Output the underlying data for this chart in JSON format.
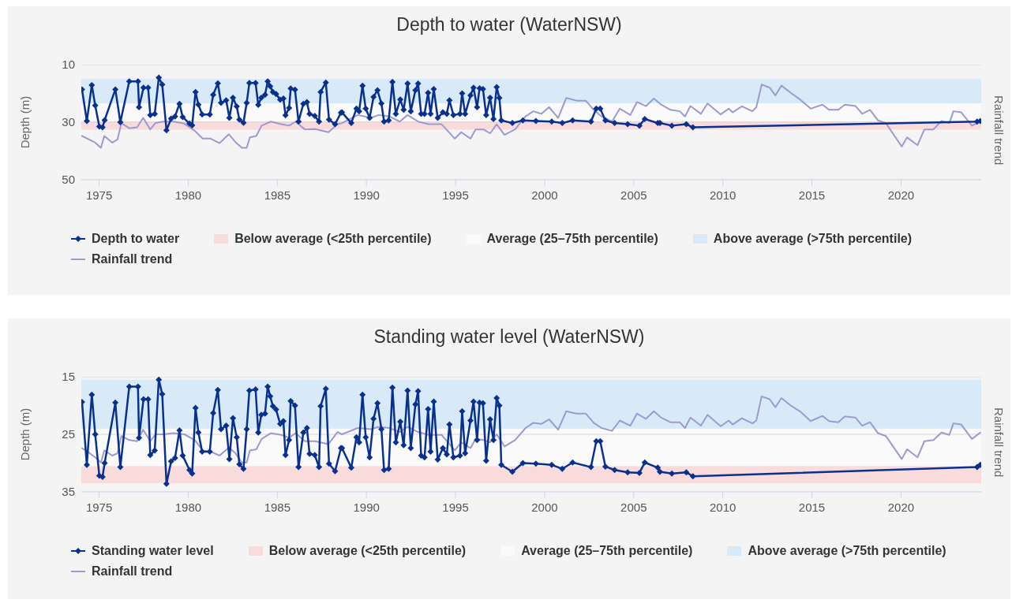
{
  "chart_data": [
    {
      "type": "line",
      "title": "Depth to water (WaterNSW)",
      "ylabel": "Depth (m)",
      "y2label": "Rainfall trend",
      "xlim": [
        1974,
        2024.5
      ],
      "xticks": [
        1975,
        1980,
        1985,
        1990,
        1995,
        2000,
        2005,
        2010,
        2015,
        2020
      ],
      "ylim": [
        50,
        10
      ],
      "yticks": [
        10,
        30,
        50
      ],
      "grid": "y",
      "legend": "bottom",
      "bands": [
        {
          "axis": "y",
          "from": 29.7,
          "to": 32.6,
          "label": "Below average (<25th percentile)",
          "color": "#fadbdc"
        },
        {
          "axis": "y",
          "from": 23.4,
          "to": 29.7,
          "label": "Average (25–75th percentile)",
          "color": "#fafafa"
        },
        {
          "axis": "y",
          "from": 15,
          "to": 23.4,
          "label": "Above average (>75th percentile)",
          "color": "#d8eaf8"
        }
      ],
      "series": [
        {
          "name": "Depth to water",
          "color": "#08318f",
          "marker": "diamond",
          "x": [
            1974.04,
            1974.31,
            1974.59,
            1974.78,
            1975.01,
            1975.19,
            1975.31,
            1975.91,
            1976.19,
            1976.69,
            1977.18,
            1977.24,
            1977.49,
            1977.75,
            1977.87,
            1978.12,
            1978.35,
            1978.54,
            1978.78,
            1979.04,
            1979.26,
            1979.51,
            1979.69,
            1980.07,
            1980.22,
            1980.41,
            1980.57,
            1980.78,
            1981.21,
            1981.4,
            1981.66,
            1981.84,
            1982.13,
            1982.31,
            1982.51,
            1982.72,
            1982.87,
            1983.1,
            1983.28,
            1983.43,
            1983.78,
            1983.93,
            1984.1,
            1984.31,
            1984.46,
            1984.6,
            1984.75,
            1984.93,
            1985.16,
            1985.34,
            1985.46,
            1985.66,
            1985.75,
            1985.99,
            1986.19,
            1986.46,
            1986.66,
            1986.81,
            1987.1,
            1987.34,
            1987.43,
            1987.72,
            1987.9,
            1988.24,
            1988.57,
            1988.63,
            1989.15,
            1989.44,
            1989.59,
            1989.78,
            1989.96,
            1990.18,
            1990.4,
            1990.62,
            1990.84,
            1990.99,
            1991.25,
            1991.46,
            1991.65,
            1991.9,
            1992.09,
            1992.31,
            1992.49,
            1992.75,
            1992.9,
            1993.07,
            1993.26,
            1993.46,
            1993.6,
            1993.78,
            1994,
            1994.29,
            1994.51,
            1994.66,
            1994.88,
            1995.25,
            1995.37,
            1995.54,
            1995.84,
            1996.01,
            1996.21,
            1996.35,
            1996.54,
            1996.72,
            1996.94,
            1997.13,
            1997.31,
            1997.46,
            1997.57,
            1998.19,
            1998.78,
            1999.51,
            2000.4,
            2000.99,
            2001.57,
            2002.6,
            2002.9,
            2003.12,
            2003.41,
            2003.93,
            2004.66,
            2005.32,
            2005.62,
            2006.35,
            2006.47,
            2007.14,
            2007.95,
            2008.32,
            2024.27,
            2024.45
          ],
          "values": [
            18.6,
            29.6,
            17.1,
            24.2,
            31.5,
            31.8,
            29.3,
            18.6,
            30,
            15.8,
            15.8,
            24.8,
            18,
            18,
            27.5,
            27.1,
            14.5,
            16.9,
            32.8,
            28.8,
            28,
            23.6,
            28.2,
            30.5,
            31.1,
            19.5,
            23.9,
            27.3,
            27.3,
            20.5,
            16.5,
            23.3,
            22.4,
            28.5,
            21.5,
            24.5,
            29.1,
            30.2,
            23.3,
            16.4,
            16.4,
            24,
            21.5,
            20.5,
            15.8,
            17.5,
            19.5,
            20.2,
            22.2,
            21.8,
            27.6,
            25.1,
            18.3,
            18.7,
            29.8,
            23.6,
            23,
            27.1,
            27.8,
            29.8,
            19.5,
            16.2,
            29.1,
            30.7,
            26.7,
            26.6,
            30.3,
            25.3,
            26.2,
            17.3,
            25.3,
            28.5,
            21.2,
            18.9,
            23.5,
            29.8,
            29.4,
            16,
            27.1,
            22.1,
            25.7,
            16.6,
            26.2,
            18.9,
            16.6,
            27.1,
            27.1,
            19.8,
            27.1,
            18.5,
            28.5,
            26.6,
            27.1,
            22.4,
            27.5,
            27.1,
            20,
            27.1,
            20.7,
            18,
            24.8,
            18.2,
            18.5,
            27.5,
            21.5,
            28.9,
            17.8,
            21.6,
            29.4,
            30.3,
            29.4,
            29.6,
            29.8,
            30.3,
            29.4,
            29.8,
            25.3,
            25.3,
            29.4,
            30.3,
            30.7,
            31.2,
            28.9,
            30.3,
            30.3,
            31.2,
            30.7,
            31.8,
            29.8,
            29.6
          ]
        },
        {
          "name": "Rainfall trend",
          "color": "#9d9ad0",
          "marker": "none",
          "x": [
            1974.04,
            1974.34,
            1974.78,
            1975.1,
            1975.29,
            1975.74,
            1976.03,
            1976.25,
            1976.69,
            1977.13,
            1977.47,
            1977.87,
            1978.16,
            1978.6,
            1979.19,
            1979.78,
            1980.37,
            1980.81,
            1981.25,
            1981.76,
            1982.28,
            1982.65,
            1983.01,
            1983.28,
            1983.46,
            1983.82,
            1984.12,
            1984.63,
            1985.22,
            1985.66,
            1986.03,
            1986.54,
            1987.13,
            1987.87,
            1988.38,
            1988.63,
            1989.51,
            1990.25,
            1990.69,
            1991.28,
            1991.87,
            1992.31,
            1992.9,
            1993.49,
            1994.22,
            1994.96,
            1995.32,
            1995.84,
            1996.13,
            1996.57,
            1996.94,
            1997.31,
            1997.75,
            1998.34,
            1998.93,
            1999.37,
            1999.81,
            2000.25,
            2000.76,
            2001.21,
            2001.79,
            2002.31,
            2002.75,
            2003.19,
            2003.78,
            2004.22,
            2004.81,
            2005.18,
            2005.69,
            2006.13,
            2006.54,
            2007.06,
            2007.58,
            2007.88,
            2008.18,
            2008.77,
            2009.14,
            2009.88,
            2010.33,
            2010.55,
            2011.07,
            2011.66,
            2011.88,
            2012.18,
            2012.63,
            2012.95,
            2013.29,
            2013.81,
            2014.33,
            2014.93,
            2015.59,
            2015.96,
            2016.48,
            2016.85,
            2017.45,
            2017.82,
            2018.26,
            2018.71,
            2019.15,
            2020.04,
            2020.34,
            2020.93,
            2021.31,
            2021.82,
            2022.27,
            2022.71,
            2022.94,
            2023.38,
            2023.98,
            2024.45
          ],
          "values": [
            34.8,
            35.7,
            37.1,
            38.9,
            34.8,
            37.1,
            36,
            30.3,
            32.1,
            31.8,
            28.5,
            32.5,
            30.3,
            29.8,
            29.8,
            30.5,
            33,
            35.7,
            35.7,
            37.3,
            34.2,
            36.9,
            38.9,
            38.9,
            35.3,
            34.8,
            31.2,
            29.8,
            30.7,
            31.2,
            29.8,
            32.5,
            32.4,
            33.5,
            30.7,
            30.3,
            27.5,
            28.5,
            27.5,
            28,
            29.8,
            27.5,
            29.8,
            30.7,
            30.7,
            35.7,
            33.5,
            35.7,
            32.5,
            32.5,
            33.9,
            30.7,
            34.4,
            32.5,
            28,
            26.2,
            27.1,
            24.8,
            28.5,
            21.6,
            22.5,
            22.5,
            25.7,
            28,
            29.8,
            25.3,
            27.5,
            23,
            24.4,
            21.8,
            23.9,
            25.7,
            26.2,
            28,
            24.4,
            27.1,
            23.5,
            27.3,
            25.3,
            26.6,
            24.5,
            26.2,
            24.8,
            16.9,
            18,
            20.7,
            17.3,
            19.8,
            22.1,
            25.3,
            23.9,
            25.7,
            25.7,
            23.9,
            24.4,
            27.1,
            25.7,
            29.4,
            30.3,
            38.5,
            35.3,
            38,
            32.5,
            32.5,
            29.6,
            30.3,
            26.2,
            26.6,
            31.2,
            29.8
          ]
        }
      ]
    },
    {
      "type": "line",
      "title": "Standing water level (WaterNSW)",
      "ylabel": "Depth (m)",
      "y2label": "Rainfall trend",
      "xlim": [
        1974,
        2024.5
      ],
      "xticks": [
        1975,
        1980,
        1985,
        1990,
        1995,
        2000,
        2005,
        2010,
        2015,
        2020
      ],
      "ylim": [
        35,
        15
      ],
      "yticks": [
        15,
        25,
        35
      ],
      "grid": "y",
      "legend": "bottom",
      "bands": [
        {
          "axis": "y",
          "from": 30.5,
          "to": 33.5,
          "label": "Below average (<25th percentile)",
          "color": "#fadbdc"
        },
        {
          "axis": "y",
          "from": 24,
          "to": 30.5,
          "label": "Average (25–75th percentile)",
          "color": "#fafafa"
        },
        {
          "axis": "y",
          "from": 15.5,
          "to": 24,
          "label": "Above average (>75th percentile)",
          "color": "#d8eaf8"
        }
      ],
      "series": [
        {
          "name": "Standing water level",
          "color": "#08318f",
          "marker": "diamond",
          "x": [
            1974.04,
            1974.31,
            1974.59,
            1974.78,
            1975.01,
            1975.19,
            1975.31,
            1975.91,
            1976.19,
            1976.69,
            1977.18,
            1977.24,
            1977.49,
            1977.75,
            1977.87,
            1978.12,
            1978.35,
            1978.54,
            1978.78,
            1979.04,
            1979.26,
            1979.51,
            1979.69,
            1980.07,
            1980.22,
            1980.41,
            1980.57,
            1980.78,
            1981.21,
            1981.4,
            1981.66,
            1981.84,
            1982.13,
            1982.31,
            1982.51,
            1982.72,
            1982.87,
            1983.1,
            1983.28,
            1983.43,
            1983.78,
            1983.93,
            1984.1,
            1984.31,
            1984.46,
            1984.6,
            1984.75,
            1984.93,
            1985.16,
            1985.34,
            1985.46,
            1985.66,
            1985.75,
            1985.99,
            1986.19,
            1986.46,
            1986.66,
            1986.81,
            1987.1,
            1987.34,
            1987.43,
            1987.72,
            1987.9,
            1988.24,
            1988.57,
            1988.63,
            1989.15,
            1989.44,
            1989.59,
            1989.78,
            1989.96,
            1990.18,
            1990.4,
            1990.62,
            1990.84,
            1990.99,
            1991.25,
            1991.46,
            1991.65,
            1991.9,
            1992.09,
            1992.31,
            1992.49,
            1992.75,
            1992.9,
            1993.07,
            1993.26,
            1993.46,
            1993.6,
            1993.78,
            1994,
            1994.29,
            1994.51,
            1994.66,
            1994.88,
            1995.25,
            1995.37,
            1995.54,
            1995.84,
            1996.01,
            1996.21,
            1996.35,
            1996.54,
            1996.72,
            1996.94,
            1997.13,
            1997.31,
            1997.46,
            1997.57,
            1998.19,
            1998.78,
            1999.51,
            2000.4,
            2000.99,
            2001.57,
            2002.6,
            2002.9,
            2003.12,
            2003.41,
            2003.93,
            2004.66,
            2005.32,
            2005.62,
            2006.35,
            2006.47,
            2007.14,
            2007.95,
            2008.32,
            2024.27,
            2024.45
          ],
          "values": [
            19.4,
            30.3,
            18.1,
            25,
            32.2,
            32.4,
            30,
            19.5,
            30.7,
            16.7,
            16.7,
            25.6,
            18.9,
            18.9,
            28.6,
            27.8,
            15.5,
            18,
            33.6,
            29.7,
            29.1,
            24.3,
            28.7,
            31.2,
            31.8,
            20.4,
            24.7,
            28,
            28,
            21.3,
            17.3,
            24.1,
            23.5,
            29.3,
            22.2,
            25.5,
            30.2,
            31,
            24.1,
            17.4,
            17.2,
            24.7,
            21.6,
            21.4,
            16.7,
            18.4,
            20.1,
            20.7,
            23.2,
            22.7,
            28.6,
            26,
            19.2,
            20,
            30.7,
            24.7,
            23.9,
            28.4,
            28.6,
            30.7,
            20.1,
            17.1,
            30.1,
            31.4,
            27.4,
            27.4,
            30.8,
            25.5,
            26.4,
            18.1,
            25.5,
            29,
            22.3,
            19.6,
            24.1,
            31.2,
            31,
            16.9,
            26.4,
            22.8,
            26.9,
            17.4,
            27.4,
            19.8,
            17.5,
            28.7,
            29,
            20.6,
            28,
            19.3,
            29.4,
            27.4,
            28.5,
            23.3,
            29,
            28.7,
            21,
            28.3,
            22.6,
            19.3,
            26,
            19.5,
            19.6,
            29.6,
            22.4,
            26,
            18.7,
            20,
            30.3,
            31.5,
            30,
            30.1,
            30.3,
            31,
            29.9,
            30.7,
            26.2,
            26.2,
            30.6,
            31.2,
            31.6,
            31.7,
            29.9,
            30.8,
            31.5,
            31.8,
            31.6,
            32.3,
            30.7,
            30.3
          ]
        },
        {
          "name": "Rainfall trend",
          "color": "#9d9ad0",
          "marker": "none",
          "x": [
            1974.04,
            1974.34,
            1974.78,
            1975.1,
            1975.29,
            1975.74,
            1976.03,
            1976.25,
            1976.69,
            1977.13,
            1977.47,
            1977.87,
            1978.16,
            1978.6,
            1979.19,
            1979.78,
            1980.37,
            1980.81,
            1981.25,
            1981.76,
            1982.28,
            1982.65,
            1983.01,
            1983.28,
            1983.46,
            1983.82,
            1984.12,
            1984.63,
            1985.22,
            1985.66,
            1986.03,
            1986.54,
            1987.13,
            1987.87,
            1988.38,
            1988.63,
            1989.51,
            1990.25,
            1990.69,
            1991.28,
            1991.87,
            1992.31,
            1992.9,
            1993.49,
            1994.22,
            1994.96,
            1995.32,
            1995.84,
            1996.13,
            1996.57,
            1996.94,
            1997.31,
            1997.75,
            1998.34,
            1998.93,
            1999.37,
            1999.81,
            2000.25,
            2000.76,
            2001.21,
            2001.79,
            2002.31,
            2002.75,
            2003.19,
            2003.78,
            2004.22,
            2004.81,
            2005.18,
            2005.69,
            2006.13,
            2006.54,
            2007.06,
            2007.58,
            2007.88,
            2008.18,
            2008.77,
            2009.14,
            2009.88,
            2010.33,
            2010.55,
            2011.07,
            2011.66,
            2011.88,
            2012.18,
            2012.63,
            2012.95,
            2013.29,
            2013.81,
            2014.33,
            2014.93,
            2015.59,
            2015.96,
            2016.48,
            2016.85,
            2017.45,
            2017.82,
            2018.26,
            2018.71,
            2019.15,
            2020.04,
            2020.34,
            2020.93,
            2021.31,
            2021.82,
            2022.27,
            2022.71,
            2022.94,
            2023.38,
            2023.98,
            2024.45
          ],
          "values": [
            27.4,
            28,
            29,
            29.9,
            27.8,
            28.7,
            28.3,
            25.3,
            26,
            26.2,
            24.2,
            26.2,
            25,
            25,
            24.8,
            25,
            26,
            27.8,
            28,
            28.7,
            27.3,
            28.3,
            29.9,
            29.9,
            27.8,
            27.6,
            25.8,
            24.8,
            25.1,
            25.6,
            24.8,
            26.2,
            26.2,
            26.7,
            24.6,
            25,
            23.9,
            24.1,
            23.7,
            23.9,
            24.6,
            23.7,
            24.6,
            25.1,
            25.1,
            27.8,
            26.4,
            27.4,
            25.8,
            26,
            26.4,
            25,
            27.1,
            26,
            23.9,
            23,
            23.2,
            22.4,
            24.2,
            21,
            21.4,
            21.4,
            23,
            23.9,
            24.4,
            22.6,
            23.5,
            21.4,
            22.3,
            21,
            22.1,
            22.9,
            22.9,
            23.9,
            22.1,
            23.5,
            21.6,
            23.6,
            22.6,
            23.3,
            22.2,
            23.1,
            22.6,
            18.4,
            18.9,
            20.3,
            18.7,
            20,
            21,
            22.7,
            21.8,
            22.7,
            22.9,
            21.9,
            22.1,
            23.5,
            22.9,
            24.8,
            25.3,
            29.3,
            27.6,
            29,
            26.2,
            26,
            24.7,
            25.1,
            23.1,
            23.3,
            25.8,
            24.7
          ]
        }
      ]
    }
  ]
}
